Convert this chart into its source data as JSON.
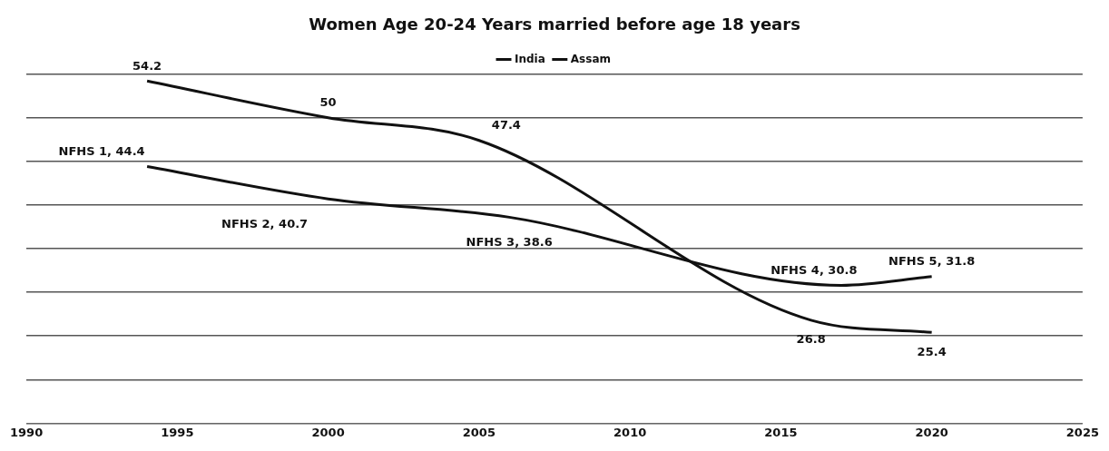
{
  "chart_data": {
    "type": "line",
    "title": "Women Age 20-24 Years married before age 18 years",
    "series": [
      {
        "name": "India",
        "color": "#111111",
        "x": [
          1994,
          2000,
          2005,
          2016,
          2020
        ],
        "values": [
          54.2,
          50,
          47.4,
          26.8,
          25.4
        ],
        "value_labels": [
          "54.2",
          "50",
          "47.4",
          "26.8",
          "25.4"
        ]
      },
      {
        "name": "Assam",
        "color": "#111111",
        "x": [
          1994,
          2000,
          2006,
          2017,
          2020
        ],
        "values": [
          44.4,
          40.7,
          38.6,
          30.8,
          31.8
        ],
        "value_labels": [
          "NFHS 1, 44.4",
          "NFHS 2, 40.7",
          "NFHS 3, 38.6",
          "NFHS 4, 30.8",
          "NFHS 5, 31.8"
        ]
      }
    ],
    "xlim": [
      1990,
      2025
    ],
    "xticks": [
      1990,
      1995,
      2000,
      2005,
      2010,
      2015,
      2020,
      2025
    ],
    "ylim": [
      15,
      55
    ],
    "yticks": [
      {
        "value": 15,
        "label": null
      },
      {
        "value": 20,
        "label": null
      },
      {
        "value": 25,
        "label": null
      },
      {
        "value": 30,
        "label": null
      },
      {
        "value": 35,
        "label": null
      },
      {
        "value": 40,
        "label": null
      },
      {
        "value": 45,
        "label": null
      },
      {
        "value": 50,
        "label": null
      },
      {
        "value": 55,
        "label": null
      }
    ],
    "tick_labels": "x",
    "grid": "y",
    "legend": "top",
    "marker": "none",
    "line_style": "solid"
  }
}
